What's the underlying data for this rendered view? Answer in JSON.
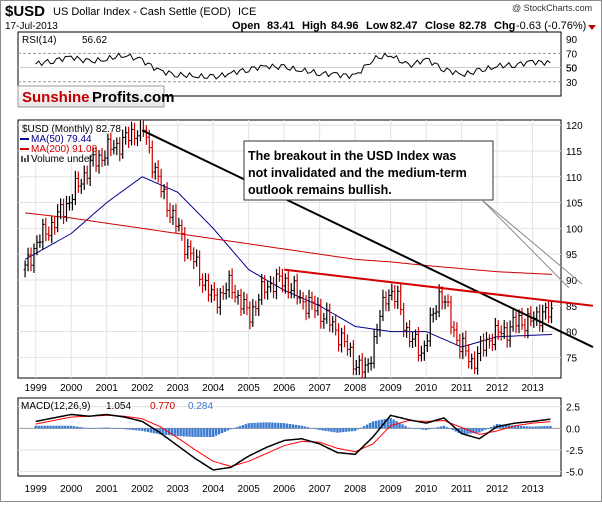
{
  "header": {
    "symbol": "$USD",
    "name": "US Dollar Index - Cash Settle (EOD)",
    "exchange": "ICE",
    "date": "17-Jul-2013",
    "watermark": "@ StockCharts.com",
    "open_label": "Open",
    "open": "83.41",
    "high_label": "High",
    "high": "84.96",
    "low_label": "Low",
    "low": "82.47",
    "close_label": "Close",
    "close": "82.78",
    "chg_label": "Chg",
    "chg": "-0.63 (-0.76%)"
  },
  "logo": {
    "part1": "Sunshine",
    "part2": "Profits.com"
  },
  "annotation": "The breakout in the USD Index was not invalidated and the medium-term outlook remains bullish.",
  "colors": {
    "price_up": "#000000",
    "price_down": "#cc0000",
    "ma50": "#00008b",
    "ma200": "#cc0000",
    "trendline": "#000000",
    "resistance": "#d40000",
    "macd": "#000000",
    "signal": "#ff0000",
    "histogram": "#3a7ad0",
    "rsi_fill": "#a03030"
  },
  "chart_data": [
    {
      "type": "line",
      "panel": "RSI",
      "legend": "RSI(14)",
      "value": 56.62,
      "y_ticks": [
        30,
        50,
        70,
        90
      ],
      "ylim": [
        10,
        100
      ],
      "levels": [
        30,
        70
      ],
      "x": [
        1999,
        1999.5,
        2000,
        2000.5,
        2001,
        2001.5,
        2002,
        2002.5,
        2003,
        2003.5,
        2004,
        2004.5,
        2005,
        2005.5,
        2006,
        2006.5,
        2007,
        2007.5,
        2008,
        2008.5,
        2009,
        2009.5,
        2010,
        2010.5,
        2011,
        2011.5,
        2012,
        2012.5,
        2013,
        2013.5
      ],
      "values": [
        55,
        60,
        65,
        58,
        62,
        68,
        60,
        45,
        40,
        38,
        36,
        42,
        48,
        52,
        50,
        46,
        42,
        40,
        38,
        62,
        68,
        52,
        62,
        48,
        40,
        45,
        52,
        54,
        58,
        56.62
      ]
    },
    {
      "type": "line",
      "panel": "Price",
      "title": "$USD (Monthly) 82.78",
      "series": [
        {
          "name": "$USD (Monthly)",
          "value": 82.78,
          "x": [
            1998.7,
            1999,
            1999.5,
            2000,
            2000.5,
            2001,
            2001.5,
            2002,
            2002.5,
            2003,
            2003.5,
            2004,
            2004.5,
            2005,
            2005.5,
            2006,
            2006.5,
            2007,
            2007.5,
            2008,
            2008.3,
            2008.9,
            2009.2,
            2009.5,
            2009.9,
            2010.4,
            2010.9,
            2011.3,
            2011.8,
            2012.2,
            2012.6,
            2013,
            2013.3,
            2013.55
          ],
          "values": [
            92,
            97,
            101,
            106,
            112,
            115,
            117,
            120,
            108,
            100,
            93,
            86,
            89,
            83,
            89,
            90,
            86,
            84,
            80,
            74,
            72,
            88,
            86,
            79,
            76,
            88,
            78,
            74,
            79,
            80,
            82,
            82,
            84,
            82.78
          ]
        },
        {
          "name": "MA(50)",
          "value": 79.44,
          "x": [
            1998.7,
            2000,
            2001,
            2002,
            2003,
            2004,
            2005,
            2006,
            2007,
            2008,
            2009,
            2010,
            2011,
            2012,
            2013.55
          ],
          "values": [
            94,
            99,
            105,
            110,
            107,
            100,
            92,
            88,
            85,
            81,
            80,
            80,
            77,
            79,
            79.44
          ]
        },
        {
          "name": "MA(200)",
          "value": 91.08,
          "x": [
            1998.7,
            2000,
            2001,
            2002,
            2003,
            2004,
            2005,
            2006,
            2007,
            2008,
            2009,
            2010,
            2011,
            2012,
            2013.55
          ],
          "values": [
            103,
            102,
            101,
            100,
            99,
            98,
            97,
            96,
            95,
            94,
            93.5,
            92.8,
            92.2,
            91.6,
            91.08
          ]
        }
      ],
      "legend": [
        "MA(50) 79.44",
        "MA(200) 91.08",
        "Volume undef"
      ],
      "y_ticks": [
        75,
        80,
        85,
        90,
        95,
        100,
        105,
        110,
        115,
        120
      ],
      "ylim": [
        71,
        121
      ],
      "x_ticks": [
        "1999",
        "2000",
        "2001",
        "2002",
        "2003",
        "2004",
        "2005",
        "2006",
        "2007",
        "2008",
        "2009",
        "2010",
        "2011",
        "2012",
        "2013"
      ],
      "trendlines": [
        {
          "x": [
            2002,
            2014.7
          ],
          "y": [
            119,
            77
          ]
        },
        {
          "x": [
            2006,
            2014.7
          ],
          "y": [
            92,
            85
          ]
        }
      ]
    },
    {
      "type": "line",
      "panel": "MACD",
      "legend": "MACD(12,26,9)",
      "macd_value": "1.054",
      "signal_value": "0.770",
      "hist_value": "0.284",
      "y_ticks": [
        -5.0,
        -2.5,
        0.0,
        2.5
      ],
      "ylim": [
        -5.5,
        3.5
      ],
      "x": [
        1999,
        1999.5,
        2000,
        2000.5,
        2001,
        2001.5,
        2002,
        2002.5,
        2003,
        2003.5,
        2004,
        2004.5,
        2005,
        2005.5,
        2006,
        2006.5,
        2007,
        2007.5,
        2008,
        2008.5,
        2009,
        2009.5,
        2010,
        2010.5,
        2011,
        2011.5,
        2012,
        2012.5,
        2013,
        2013.5
      ],
      "macd": [
        0.8,
        1.2,
        1.6,
        1.4,
        1.6,
        1.3,
        0.8,
        -0.5,
        -2.0,
        -3.5,
        -4.8,
        -4.5,
        -3.2,
        -2.2,
        -1.4,
        -1.2,
        -1.8,
        -2.8,
        -3.0,
        -1.0,
        1.5,
        1.0,
        0.6,
        1.2,
        -0.6,
        -1.2,
        0.2,
        0.6,
        0.8,
        1.054
      ],
      "signal": [
        0.5,
        0.9,
        1.3,
        1.4,
        1.5,
        1.4,
        1.1,
        0.2,
        -1.1,
        -2.5,
        -3.8,
        -4.4,
        -3.8,
        -2.9,
        -2.0,
        -1.5,
        -1.6,
        -2.3,
        -2.7,
        -1.8,
        0.3,
        0.9,
        0.8,
        0.9,
        0.1,
        -0.7,
        -0.3,
        0.3,
        0.6,
        0.77
      ]
    }
  ]
}
